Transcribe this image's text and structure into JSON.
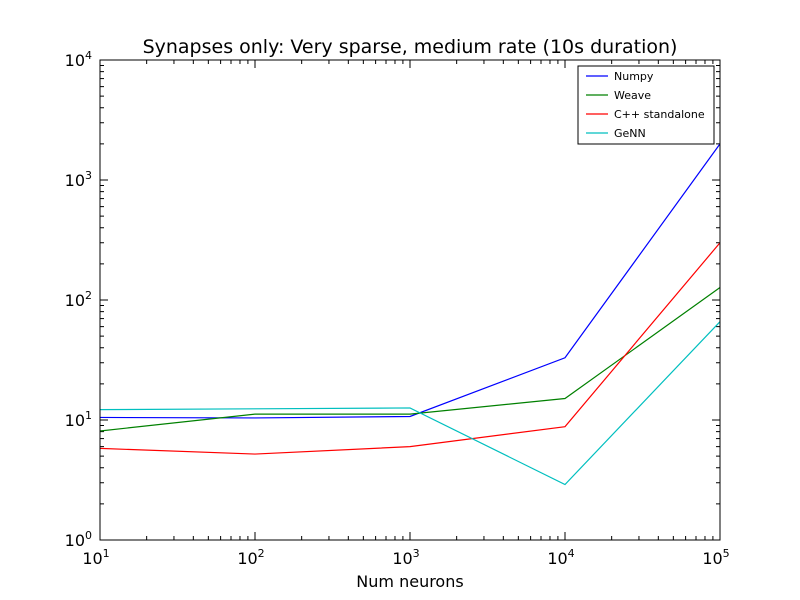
{
  "chart_data": {
    "type": "line",
    "title": "Synapses only: Very sparse, medium rate (10s duration)",
    "xlabel": "Num neurons",
    "ylabel": "",
    "xscale": "log",
    "yscale": "log",
    "xlim": [
      10,
      100000
    ],
    "ylim": [
      1,
      10000
    ],
    "x_ticks": [
      {
        "base": "10",
        "exp": "1"
      },
      {
        "base": "10",
        "exp": "2"
      },
      {
        "base": "10",
        "exp": "3"
      },
      {
        "base": "10",
        "exp": "4"
      },
      {
        "base": "10",
        "exp": "5"
      }
    ],
    "y_ticks": [
      {
        "base": "10",
        "exp": "0"
      },
      {
        "base": "10",
        "exp": "1"
      },
      {
        "base": "10",
        "exp": "2"
      },
      {
        "base": "10",
        "exp": "3"
      },
      {
        "base": "10",
        "exp": "4"
      }
    ],
    "x": [
      10,
      100,
      1000,
      10000,
      100000
    ],
    "legend_position": "top-right",
    "series": [
      {
        "name": "Numpy",
        "color": "#0000ff",
        "values": [
          10.5,
          10.4,
          10.7,
          33,
          2000
        ]
      },
      {
        "name": "Weave",
        "color": "#008000",
        "values": [
          8.1,
          11.2,
          11.2,
          15.1,
          127
        ]
      },
      {
        "name": "C++ standalone",
        "color": "#ff0000",
        "values": [
          5.8,
          5.2,
          6.0,
          8.8,
          300
        ]
      },
      {
        "name": "GeNN",
        "color": "#00bfbf",
        "values": [
          12.2,
          12.4,
          12.6,
          2.9,
          66
        ]
      }
    ]
  }
}
